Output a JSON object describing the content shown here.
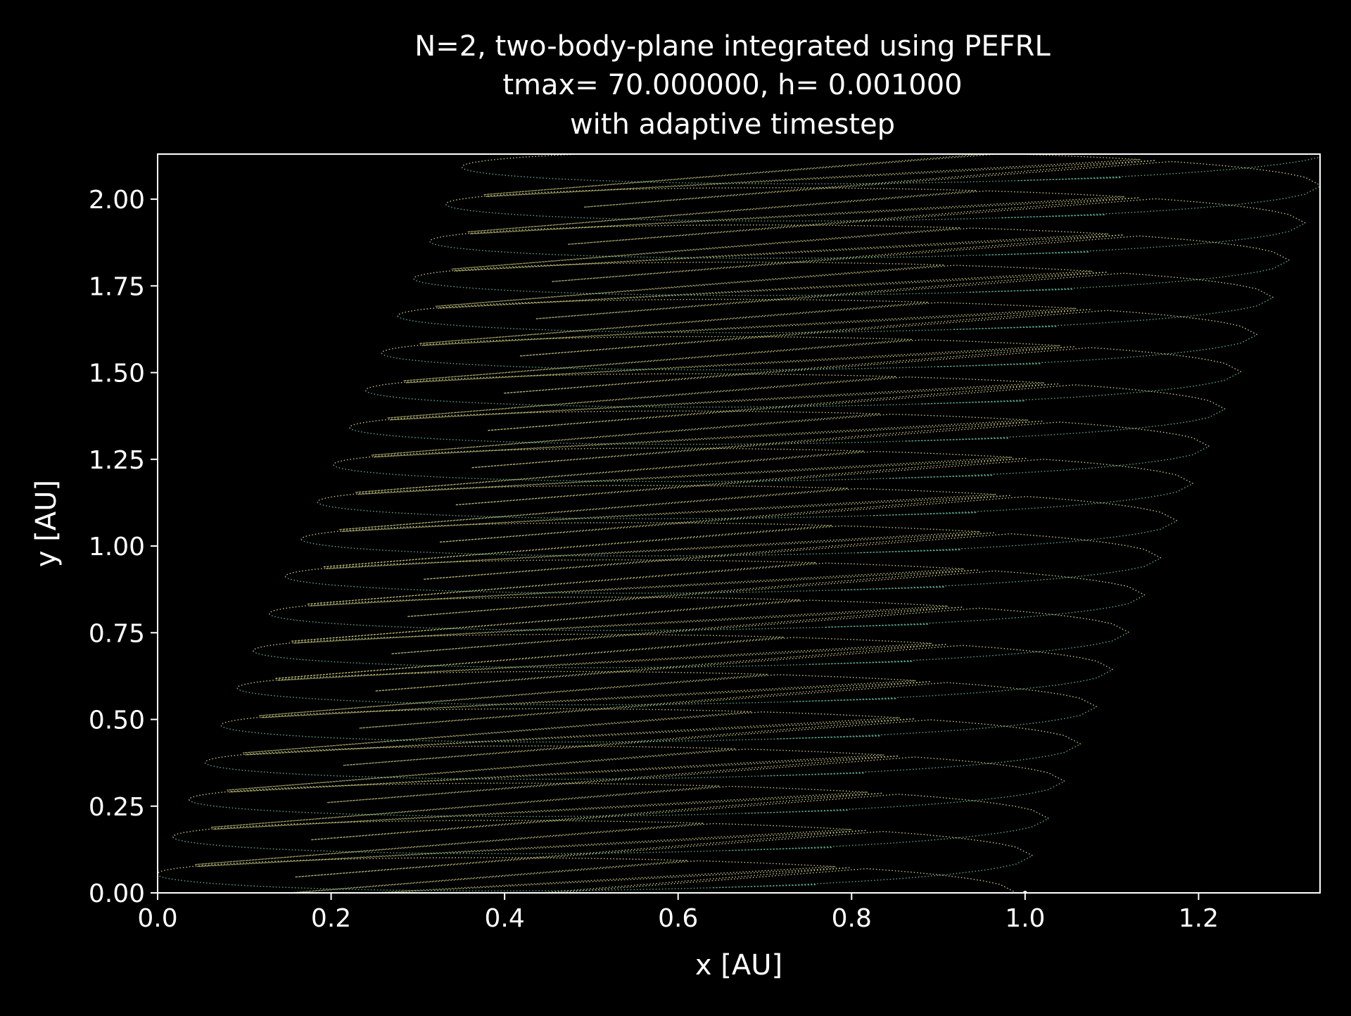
{
  "chart_data": {
    "type": "line",
    "title": [
      "N=2, two-body-plane integrated using PEFRL",
      "tmax= 70.000000, h= 0.001000",
      "with adaptive timestep"
    ],
    "xlabel": "x [AU]",
    "ylabel": "y [AU]",
    "xlim": [
      0.0,
      1.34
    ],
    "ylim": [
      0.0,
      2.13
    ],
    "xticks": [
      0.0,
      0.2,
      0.4,
      0.6,
      0.8,
      1.0,
      1.2
    ],
    "xtick_labels": [
      "0.0",
      "0.2",
      "0.4",
      "0.6",
      "0.8",
      "1.0",
      "1.2"
    ],
    "yticks": [
      0.0,
      0.25,
      0.5,
      0.75,
      1.0,
      1.25,
      1.5,
      1.75,
      2.0
    ],
    "ytick_labels": [
      "0.00",
      "0.25",
      "0.50",
      "0.75",
      "1.00",
      "1.25",
      "1.50",
      "1.75",
      "2.00"
    ],
    "grid": false,
    "legend": "none",
    "background": "#000000",
    "foreground": "#ffffff",
    "series": [
      {
        "color": "#d9d98c",
        "style": "dotted",
        "orbit_model": {
          "loops": 20,
          "x_start": 1.0,
          "y_start": 0.0,
          "x_drift_per_loop": 0.0185,
          "y_drift_per_loop": 0.1073,
          "perihelion_x": [
            1.0,
            1.018,
            1.037,
            1.055,
            1.073,
            1.092,
            1.11,
            1.128,
            1.147,
            1.165,
            1.184,
            1.202,
            1.22,
            1.239,
            1.257,
            1.275,
            1.294,
            1.312,
            1.331,
            1.349
          ],
          "aphelion_x": [
            0.018,
            0.037,
            0.055,
            0.073,
            0.092,
            0.11,
            0.128,
            0.147,
            0.165,
            0.184,
            0.202,
            0.22,
            0.239,
            0.257,
            0.275,
            0.294,
            0.312,
            0.331,
            0.349,
            0.367
          ],
          "aphelion_y": [
            0.107,
            0.215,
            0.322,
            0.429,
            0.537,
            0.644,
            0.751,
            0.858,
            0.966,
            1.073,
            1.18,
            1.288,
            1.395,
            1.502,
            1.61,
            1.717,
            1.824,
            1.931,
            2.039,
            2.146
          ],
          "end": [
            1.18,
            2.07
          ]
        }
      },
      {
        "color": "#5fbf9a",
        "style": "dotted",
        "name": ""
      }
    ]
  }
}
